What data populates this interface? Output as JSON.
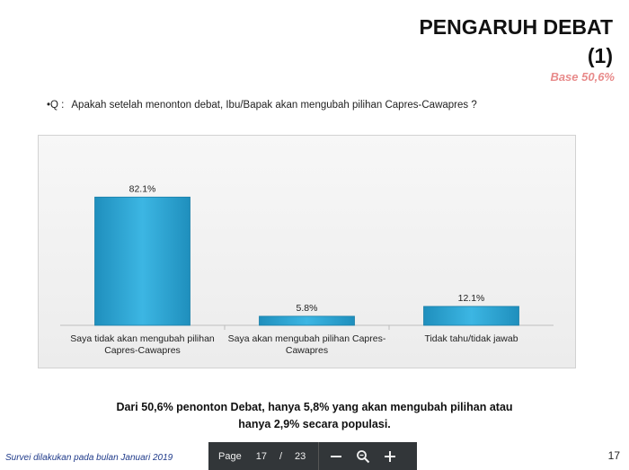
{
  "slide": {
    "title_line1": "PENGARUH DEBAT",
    "title_line2": "(1)",
    "base": "Base 50,6%",
    "question_prefix": "•Q :",
    "question_text": "Apakah setelah menonton debat, Ibu/Bapak akan mengubah pilihan Capres-Cawapres ?",
    "conclusion_line1": "Dari 50,6% penonton Debat, hanya 5,8% yang akan mengubah pilihan atau",
    "conclusion_line2": "hanya 2,9% secara populasi.",
    "footer_note": "Survei dilakukan pada bulan Januari 2019",
    "slide_number": "17"
  },
  "viewer": {
    "page_label": "Page",
    "current_page": "17",
    "separator": "/",
    "total_pages": "23",
    "zoom_out_icon": "minus-icon",
    "zoom_icon": "magnifier-icon",
    "zoom_in_icon": "plus-icon",
    "bar_color": "#323639"
  },
  "chart_data": {
    "type": "bar",
    "categories": [
      [
        "Saya tidak akan mengubah pilihan",
        "Capres-Cawapres"
      ],
      [
        "Saya akan mengubah pilihan Capres-",
        "Cawapres"
      ],
      [
        "Tidak tahu/tidak jawab"
      ]
    ],
    "values": [
      82.1,
      5.8,
      12.1
    ],
    "value_labels": [
      "82.1%",
      "5.8%",
      "12.1%"
    ],
    "ylim": [
      0,
      100
    ],
    "grid": false,
    "bar_color": "#29a3d1"
  }
}
